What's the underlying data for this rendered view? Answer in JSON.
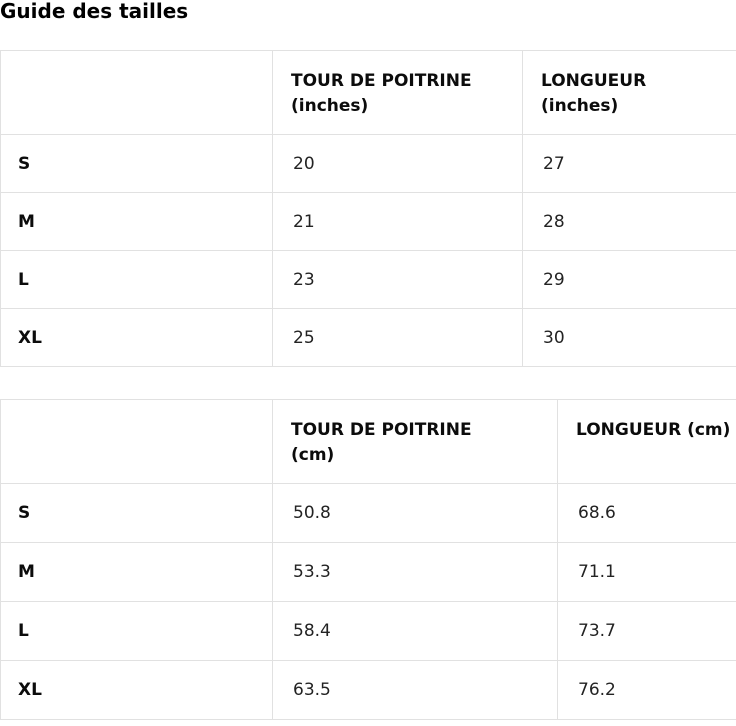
{
  "page": {
    "title": "Guide des tailles"
  },
  "tables": [
    {
      "id": "inches",
      "columns": [
        {
          "lines": [
            ""
          ]
        },
        {
          "lines": [
            "TOUR DE POITRINE",
            "(inches)"
          ]
        },
        {
          "lines": [
            "LONGUEUR",
            "(inches)"
          ]
        }
      ],
      "sizes": [
        "S",
        "M",
        "L",
        "XL"
      ],
      "rows": [
        [
          "20",
          "27"
        ],
        [
          "21",
          "28"
        ],
        [
          "23",
          "29"
        ],
        [
          "25",
          "30"
        ]
      ]
    },
    {
      "id": "cm",
      "columns": [
        {
          "lines": [
            ""
          ]
        },
        {
          "lines": [
            "TOUR DE POITRINE",
            "(cm)"
          ]
        },
        {
          "lines": [
            "LONGUEUR (cm)"
          ]
        }
      ],
      "sizes": [
        "S",
        "M",
        "L",
        "XL"
      ],
      "rows": [
        [
          "50.8",
          "68.6"
        ],
        [
          "53.3",
          "71.1"
        ],
        [
          "58.4",
          "73.7"
        ],
        [
          "63.5",
          "76.2"
        ]
      ]
    }
  ]
}
